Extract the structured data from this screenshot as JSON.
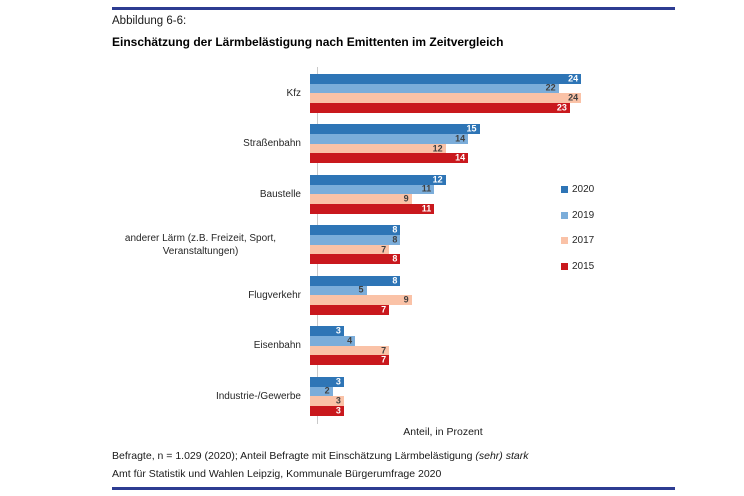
{
  "header": {
    "figure_label": "Abbildung 6-6:",
    "title": "Einschätzung der Lärmbelästigung nach Emittenten im Zeitvergleich"
  },
  "colors": {
    "rule_blue": "#2d3c92",
    "axis_gray": "#c9c9c9"
  },
  "chart_data": {
    "type": "bar",
    "orientation": "horizontal",
    "title": "Einschätzung der Lärmbelästigung nach Emittenten im Zeitvergleich",
    "xlabel": "Anteil, in Prozent",
    "xlim": [
      0,
      26
    ],
    "grid": false,
    "legend_position": "right",
    "value_labels": "inside-end",
    "categories": [
      "Kfz",
      "Straßenbahn",
      "Baustelle",
      "anderer Lärm (z.B. Freizeit, Sport, Veranstaltungen)",
      "Flugverkehr",
      "Eisenbahn",
      "Industrie-/Gewerbe"
    ],
    "series": [
      {
        "name": "2020",
        "color": "#2e75b6",
        "label_color": "#ffffff",
        "values": [
          24,
          15,
          12,
          8,
          8,
          3,
          3
        ]
      },
      {
        "name": "2019",
        "color": "#7badda",
        "label_color": "#3f3f3f",
        "values": [
          22,
          14,
          11,
          8,
          5,
          4,
          2
        ]
      },
      {
        "name": "2017",
        "color": "#fac2a7",
        "label_color": "#3f3f3f",
        "values": [
          24,
          12,
          9,
          7,
          9,
          7,
          3
        ]
      },
      {
        "name": "2015",
        "color": "#c9181d",
        "label_color": "#ffffff",
        "values": [
          23,
          14,
          11,
          8,
          7,
          7,
          3
        ]
      }
    ]
  },
  "footer": {
    "line1_normal": "Befragte, n = 1.029 (2020); Anteil Befragte mit Einschätzung Lärmbelästigung ",
    "line1_italic": "(sehr) stark",
    "line2": "Amt für Statistik und Wahlen Leipzig, Kommunale Bürgerumfrage 2020"
  }
}
